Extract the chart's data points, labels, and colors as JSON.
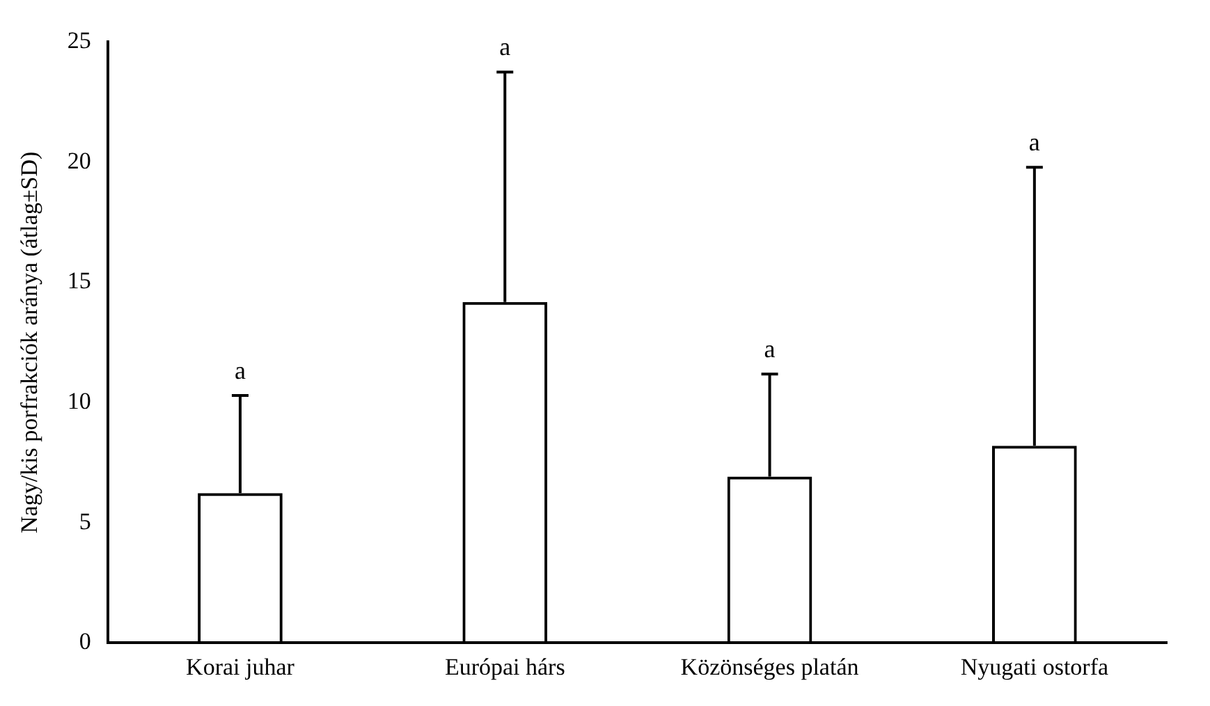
{
  "chart_data": {
    "type": "bar",
    "ylabel": "Nagy/kis porfrakciók aránya (átlag±SD)",
    "categories": [
      "Korai juhar",
      "Európai hárs",
      "Közönséges platán",
      "Nyugati ostorfa"
    ],
    "values": [
      6.23,
      14.18,
      6.92,
      8.2
    ],
    "errors": [
      [
        6.23,
        10.29
      ],
      [
        14.18,
        23.75
      ],
      [
        6.92,
        11.18
      ],
      [
        8.2,
        19.79
      ]
    ],
    "color": "#000000",
    "ylim": [
      0,
      25
    ],
    "yticks": [
      0,
      5,
      10,
      15,
      20,
      25
    ],
    "grid": false,
    "legend": false,
    "annotations": [
      {
        "text": "a",
        "x": "Korai juhar",
        "y": 10.29
      },
      {
        "text": "a",
        "x": "Európai hárs",
        "y": 23.75
      },
      {
        "text": "a",
        "x": "Közönséges platán",
        "y": 11.18
      },
      {
        "text": "a",
        "x": "Nyugati ostorfa",
        "y": 19.79
      }
    ]
  }
}
